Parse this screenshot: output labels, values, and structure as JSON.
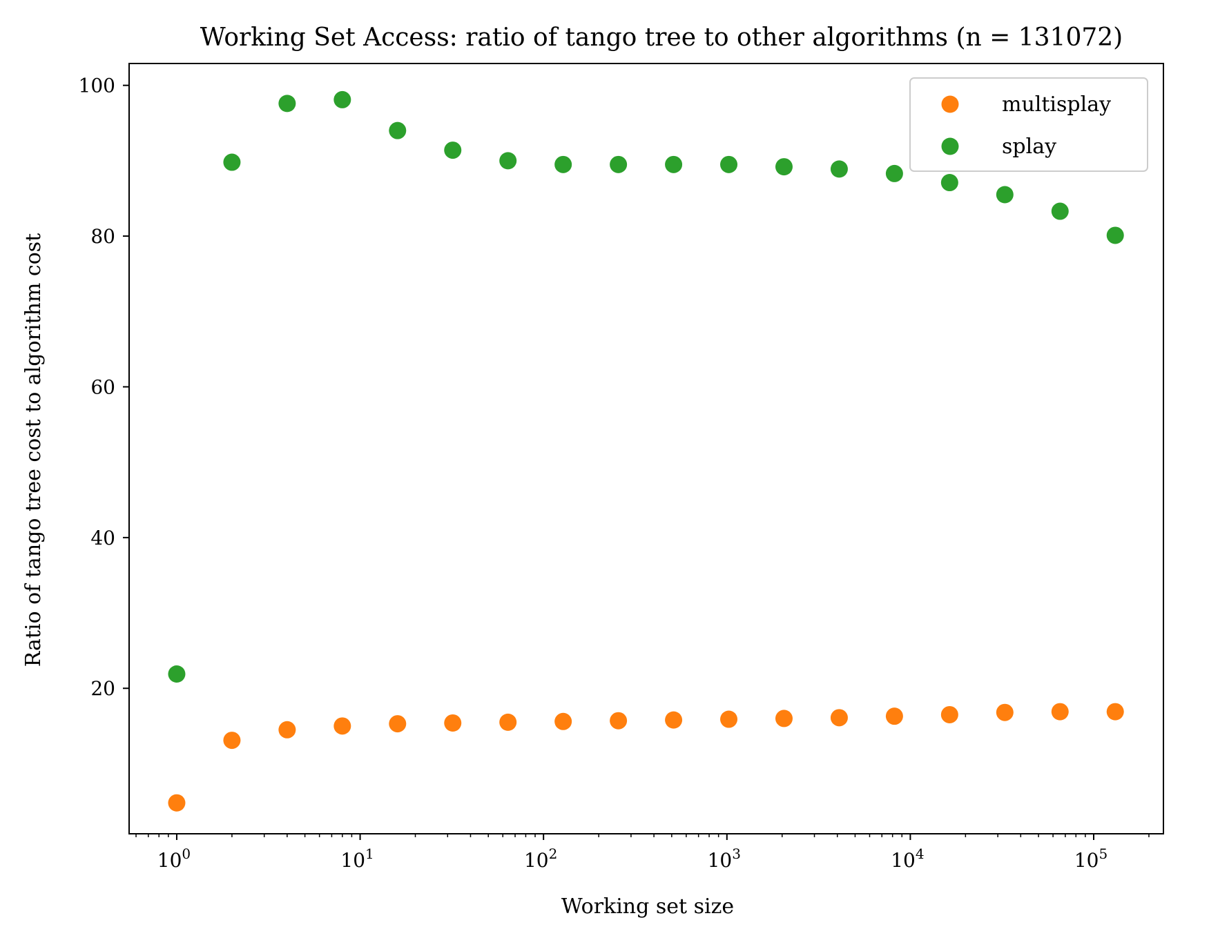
{
  "chart_data": {
    "type": "scatter",
    "title": "Working Set Access: ratio of tango tree to other algorithms (n = 131072)",
    "xlabel": "Working set size",
    "ylabel": "Ratio of tango tree cost to algorithm cost",
    "xscale": "log",
    "xlim": [
      0.55,
      240000
    ],
    "ylim": [
      0.7,
      102.9
    ],
    "x_ticks": [
      {
        "value": 1,
        "base": "10",
        "exp": "0"
      },
      {
        "value": 10,
        "base": "10",
        "exp": "1"
      },
      {
        "value": 100,
        "base": "10",
        "exp": "2"
      },
      {
        "value": 1000,
        "base": "10",
        "exp": "3"
      },
      {
        "value": 10000,
        "base": "10",
        "exp": "4"
      },
      {
        "value": 100000,
        "base": "10",
        "exp": "5"
      }
    ],
    "y_ticks": [
      {
        "value": 20,
        "label": "20"
      },
      {
        "value": 40,
        "label": "40"
      },
      {
        "value": 60,
        "label": "60"
      },
      {
        "value": 80,
        "label": "80"
      },
      {
        "value": 100,
        "label": "100"
      }
    ],
    "grid": false,
    "legend_position": "top-right",
    "x": [
      1,
      2,
      4,
      8,
      16,
      32,
      64,
      128,
      256,
      512,
      1024,
      2048,
      4096,
      8192,
      16384,
      32768,
      65536,
      131072
    ],
    "series": [
      {
        "name": "multisplay",
        "color": "#ff7f0e",
        "values": [
          4.8,
          13.1,
          14.5,
          15.0,
          15.3,
          15.4,
          15.5,
          15.6,
          15.7,
          15.8,
          15.9,
          16.0,
          16.1,
          16.3,
          16.5,
          16.8,
          16.9,
          16.9
        ]
      },
      {
        "name": "splay",
        "color": "#2ca02c",
        "values": [
          21.9,
          89.8,
          97.6,
          98.1,
          94.0,
          91.4,
          90.0,
          89.5,
          89.5,
          89.5,
          89.5,
          89.2,
          88.9,
          88.3,
          87.1,
          85.5,
          83.3,
          80.1
        ]
      }
    ]
  }
}
